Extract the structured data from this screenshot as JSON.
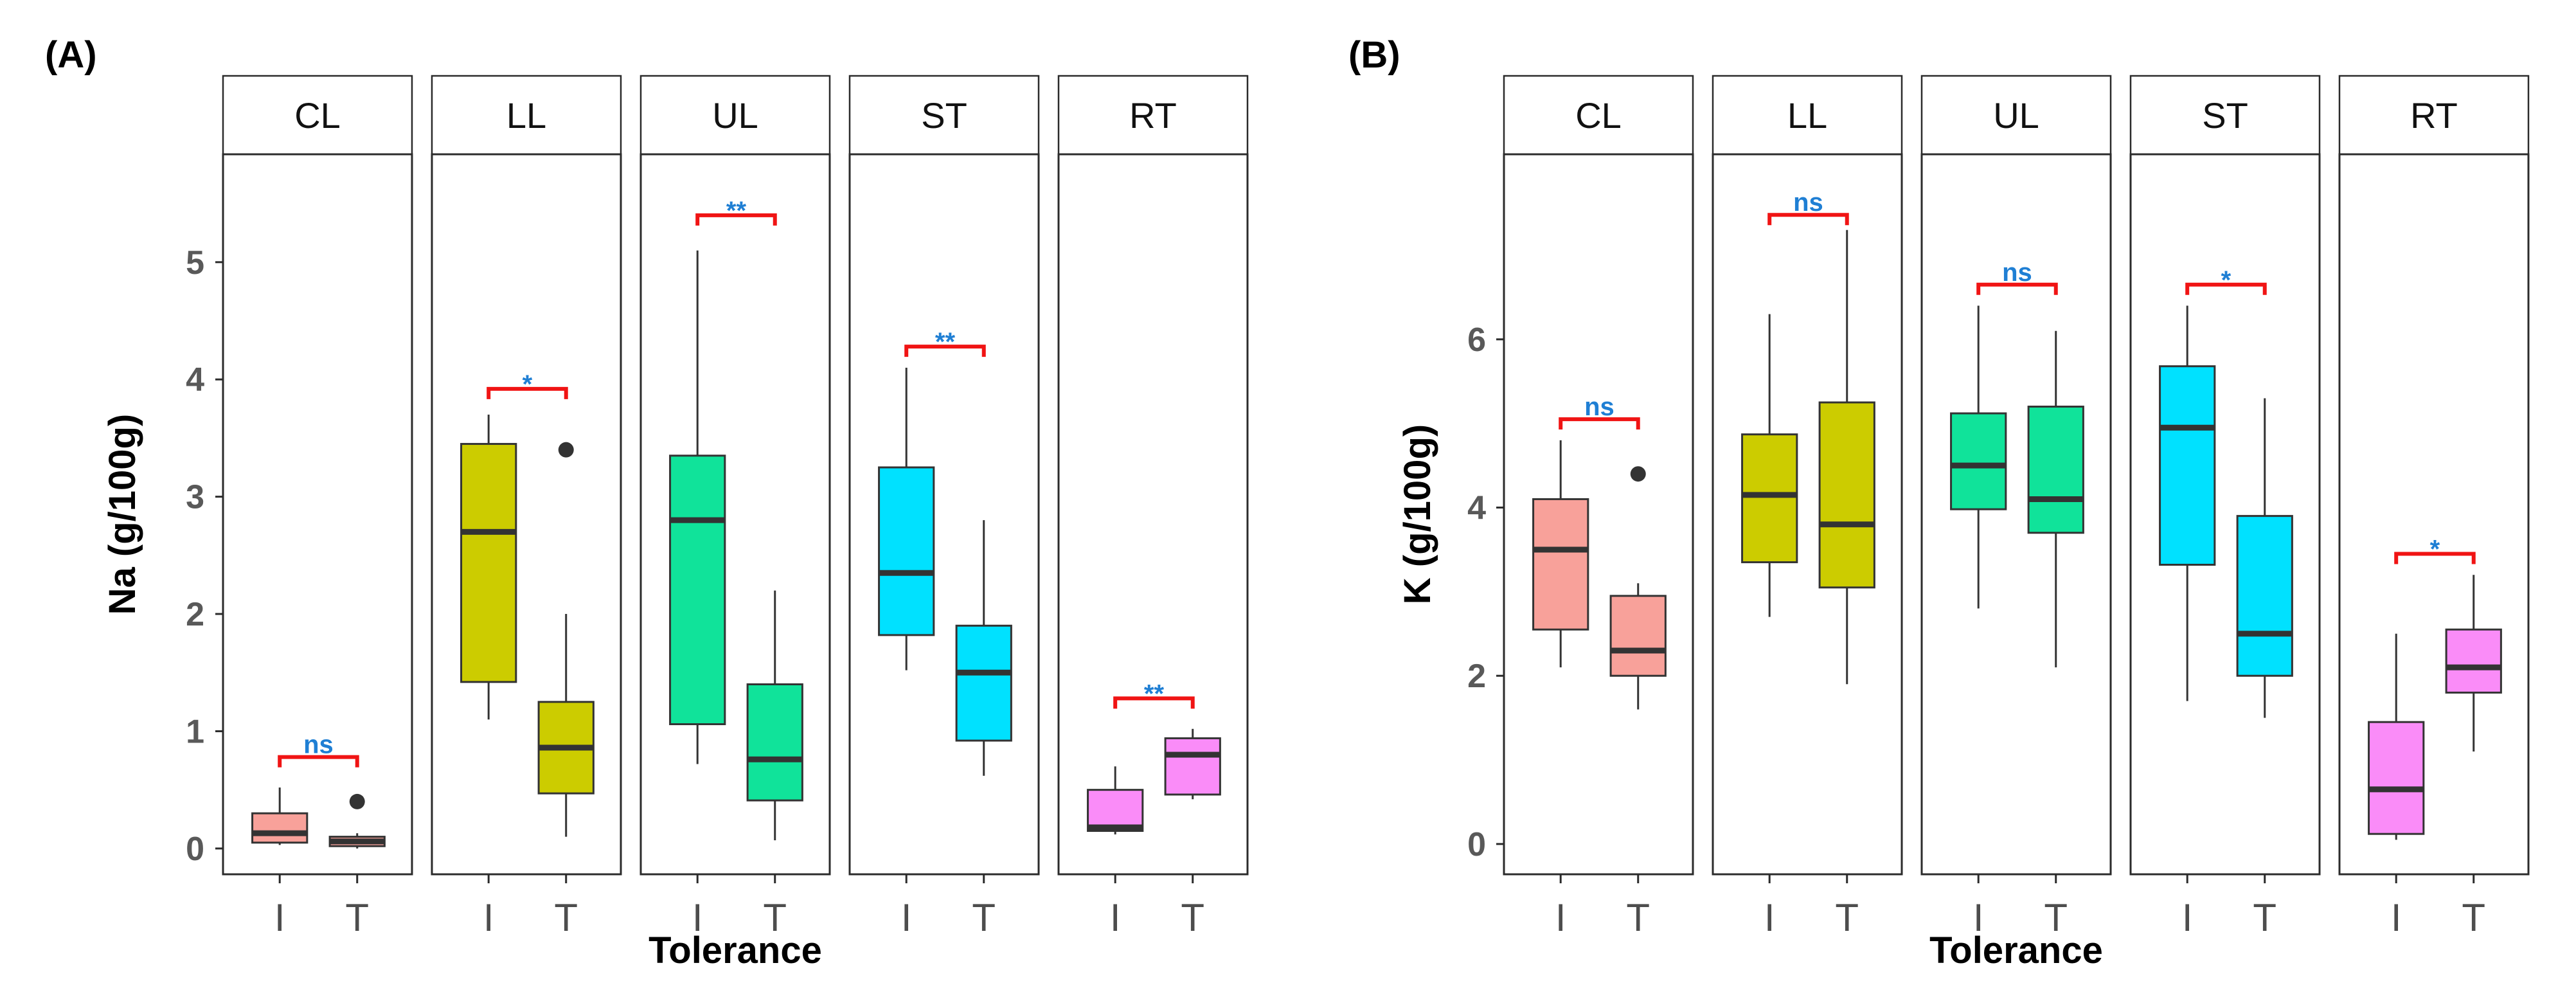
{
  "chart_data": [
    {
      "type": "boxplot",
      "panel_label": "(A)",
      "ylabel": "Na (g/100g)",
      "xlabel": "Tolerance",
      "ylim": [
        -0.22,
        5.92
      ],
      "yticks": [
        "0",
        "1",
        "2",
        "3",
        "4",
        "5"
      ],
      "categories": [
        "I",
        "T"
      ],
      "facets": [
        {
          "label": "CL",
          "color": "#F8A19A",
          "boxes": [
            {
              "group": "I",
              "min": 0.03,
              "q1": 0.05,
              "median": 0.13,
              "q3": 0.3,
              "max": 0.52,
              "outliers": []
            },
            {
              "group": "T",
              "min": 0.0,
              "q1": 0.02,
              "median": 0.06,
              "q3": 0.1,
              "max": 0.13,
              "outliers": [
                0.4
              ]
            }
          ],
          "sig": {
            "label": "ns",
            "y": 0.78
          }
        },
        {
          "label": "LL",
          "color": "#CCCC00",
          "boxes": [
            {
              "group": "I",
              "min": 1.1,
              "q1": 1.42,
              "median": 2.7,
              "q3": 3.45,
              "max": 3.7,
              "outliers": []
            },
            {
              "group": "T",
              "min": 0.1,
              "q1": 0.47,
              "median": 0.86,
              "q3": 1.25,
              "max": 2.0,
              "outliers": [
                3.4
              ]
            }
          ],
          "sig": {
            "label": "*",
            "y": 3.92
          }
        },
        {
          "label": "UL",
          "color": "#10E39A",
          "boxes": [
            {
              "group": "I",
              "min": 0.72,
              "q1": 1.06,
              "median": 2.8,
              "q3": 3.35,
              "max": 5.1,
              "outliers": []
            },
            {
              "group": "T",
              "min": 0.07,
              "q1": 0.41,
              "median": 0.76,
              "q3": 1.4,
              "max": 2.2,
              "outliers": []
            }
          ],
          "sig": {
            "label": "**",
            "y": 5.4
          }
        },
        {
          "label": "ST",
          "color": "#00E1FF",
          "boxes": [
            {
              "group": "I",
              "min": 1.52,
              "q1": 1.82,
              "median": 2.35,
              "q3": 3.25,
              "max": 4.1,
              "outliers": []
            },
            {
              "group": "T",
              "min": 0.62,
              "q1": 0.92,
              "median": 1.5,
              "q3": 1.9,
              "max": 2.8,
              "outliers": []
            }
          ],
          "sig": {
            "label": "**",
            "y": 4.28
          }
        },
        {
          "label": "RT",
          "color": "#FA8CF8",
          "boxes": [
            {
              "group": "I",
              "min": 0.12,
              "q1": 0.15,
              "median": 0.18,
              "q3": 0.5,
              "max": 0.7,
              "outliers": []
            },
            {
              "group": "T",
              "min": 0.42,
              "q1": 0.46,
              "median": 0.8,
              "q3": 0.94,
              "max": 1.02,
              "outliers": []
            }
          ],
          "sig": {
            "label": "**",
            "y": 1.28
          }
        }
      ]
    },
    {
      "type": "boxplot",
      "panel_label": "(B)",
      "ylabel": "K (g/100g)",
      "xlabel": "Tolerance",
      "ylim": [
        -0.36,
        8.2
      ],
      "yticks": [
        "0",
        "2",
        "4",
        "6"
      ],
      "categories": [
        "I",
        "T"
      ],
      "facets": [
        {
          "label": "CL",
          "color": "#F8A19A",
          "boxes": [
            {
              "group": "I",
              "min": 2.1,
              "q1": 2.55,
              "median": 3.5,
              "q3": 4.1,
              "max": 4.8,
              "outliers": []
            },
            {
              "group": "T",
              "min": 1.6,
              "q1": 2.0,
              "median": 2.3,
              "q3": 2.95,
              "max": 3.1,
              "outliers": [
                4.4
              ]
            }
          ],
          "sig": {
            "label": "ns",
            "y": 5.05
          }
        },
        {
          "label": "LL",
          "color": "#CCCC00",
          "boxes": [
            {
              "group": "I",
              "min": 2.7,
              "q1": 3.35,
              "median": 4.15,
              "q3": 4.87,
              "max": 6.3,
              "outliers": []
            },
            {
              "group": "T",
              "min": 1.9,
              "q1": 3.05,
              "median": 3.8,
              "q3": 5.25,
              "max": 7.3,
              "outliers": []
            }
          ],
          "sig": {
            "label": "ns",
            "y": 7.48
          }
        },
        {
          "label": "UL",
          "color": "#10E39A",
          "boxes": [
            {
              "group": "I",
              "min": 2.8,
              "q1": 3.98,
              "median": 4.5,
              "q3": 5.12,
              "max": 6.4,
              "outliers": []
            },
            {
              "group": "T",
              "min": 2.1,
              "q1": 3.7,
              "median": 4.1,
              "q3": 5.2,
              "max": 6.1,
              "outliers": []
            }
          ],
          "sig": {
            "label": "ns",
            "y": 6.65
          }
        },
        {
          "label": "ST",
          "color": "#00E1FF",
          "boxes": [
            {
              "group": "I",
              "min": 1.7,
              "q1": 3.32,
              "median": 4.95,
              "q3": 5.68,
              "max": 6.4,
              "outliers": []
            },
            {
              "group": "T",
              "min": 1.5,
              "q1": 2.0,
              "median": 2.5,
              "q3": 3.9,
              "max": 5.3,
              "outliers": []
            }
          ],
          "sig": {
            "label": "*",
            "y": 6.65
          }
        },
        {
          "label": "RT",
          "color": "#FA8CF8",
          "boxes": [
            {
              "group": "I",
              "min": 0.05,
              "q1": 0.12,
              "median": 0.65,
              "q3": 1.45,
              "max": 2.5,
              "outliers": []
            },
            {
              "group": "T",
              "min": 1.1,
              "q1": 1.8,
              "median": 2.1,
              "q3": 2.55,
              "max": 3.2,
              "outliers": []
            }
          ],
          "sig": {
            "label": "*",
            "y": 3.45
          }
        }
      ]
    }
  ],
  "colors": {
    "bracket": "#F01414",
    "sig_text": "#1F7FD4",
    "frame": "#2b2b2b",
    "strip_fill": "#ffffff",
    "median": "#333333",
    "whisker": "#333333",
    "outlier": "#333333",
    "tick_text": "#595959"
  }
}
